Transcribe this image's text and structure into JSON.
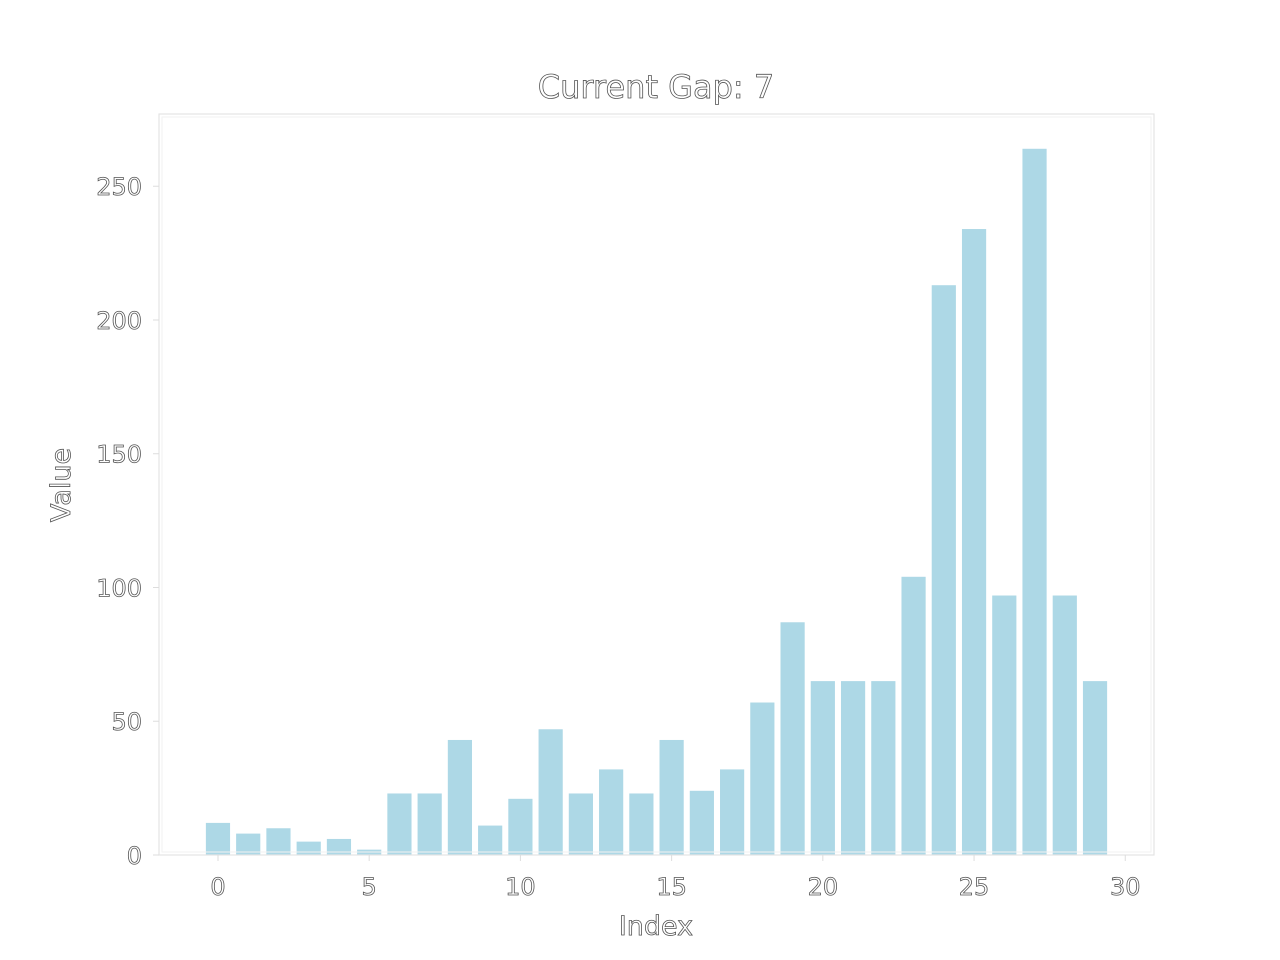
{
  "chart_data": {
    "type": "bar",
    "title": "Current Gap: 7",
    "xlabel": "Index",
    "ylabel": "Value",
    "x": [
      0,
      1,
      2,
      3,
      4,
      5,
      6,
      7,
      8,
      9,
      10,
      11,
      12,
      13,
      14,
      15,
      16,
      17,
      18,
      19,
      20,
      21,
      22,
      23,
      24,
      25,
      26,
      27,
      28,
      29
    ],
    "values": [
      12,
      8,
      10,
      5,
      6,
      2,
      23,
      23,
      43,
      11,
      21,
      47,
      23,
      32,
      23,
      43,
      24,
      32,
      57,
      87,
      65,
      65,
      65,
      104,
      213,
      234,
      97,
      264,
      97,
      65
    ],
    "xlim": [
      -1.95,
      30.95
    ],
    "ylim": [
      0,
      277
    ],
    "xticks": [
      0,
      5,
      10,
      15,
      20,
      25,
      30
    ],
    "yticks": [
      0,
      50,
      100,
      150,
      200,
      250
    ],
    "bar_color": "#add8e6",
    "grid": false,
    "legend": "none"
  }
}
